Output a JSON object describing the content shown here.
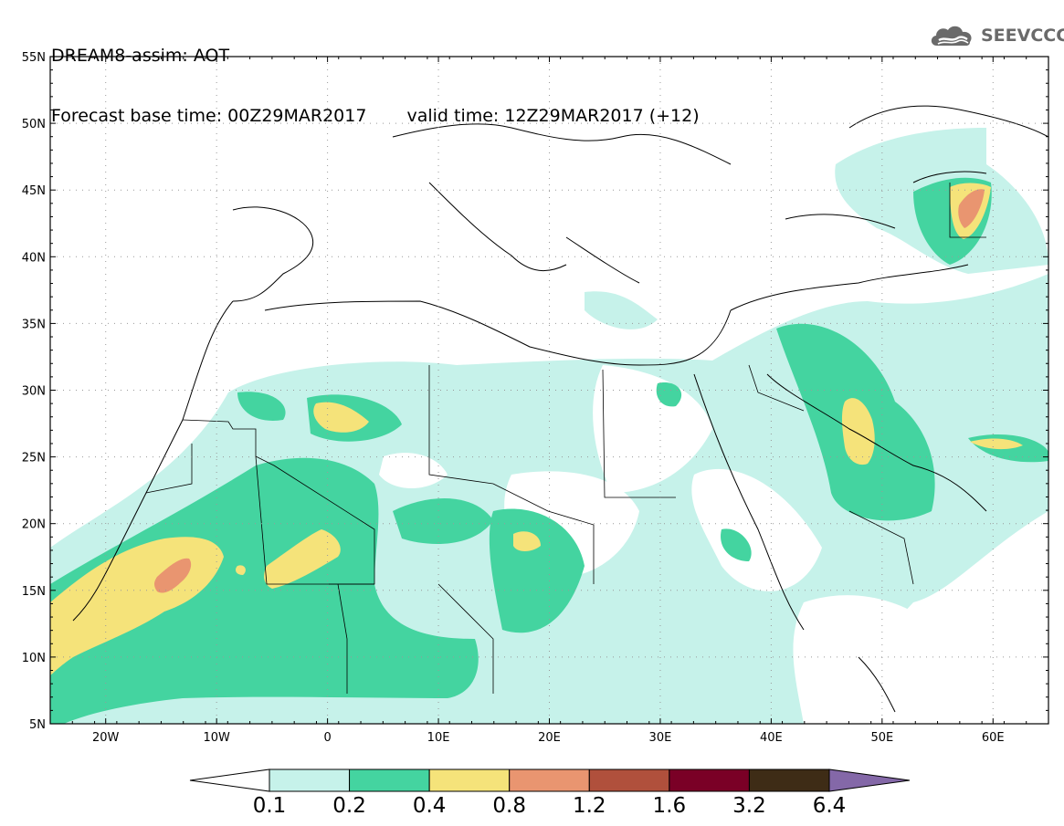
{
  "header": {
    "line1": "DREAM8-assim: AOT",
    "base_time": "Forecast base time: 00Z29MAR2017",
    "valid_time": "valid time: 12Z29MAR2017 (+12)"
  },
  "logo": {
    "text": "SEEVCCC",
    "icon": "cloud-icon"
  },
  "axes": {
    "lat_labels": [
      "55N",
      "50N",
      "45N",
      "40N",
      "35N",
      "30N",
      "25N",
      "20N",
      "15N",
      "10N",
      "5N"
    ],
    "lon_labels": [
      "20W",
      "10W",
      "0",
      "10E",
      "20E",
      "30E",
      "40E",
      "50E",
      "60E"
    ],
    "lat_range": [
      5,
      55
    ],
    "lon_range": [
      -25,
      65
    ]
  },
  "colorbar": {
    "ticks": [
      "0.1",
      "0.2",
      "0.4",
      "0.8",
      "1.2",
      "1.6",
      "3.2",
      "6.4"
    ],
    "colors": [
      "#c6f2ea",
      "#44d4a0",
      "#f5e37a",
      "#e99570",
      "#b0503c",
      "#7a0026",
      "#3e2c16",
      "#8468a8"
    ]
  },
  "legend_colors": {
    "low": "#c6f2ea",
    "mid": "#44d4a0",
    "high": "#f5e37a",
    "very_high": "#e99570",
    "extreme": "#b0503c"
  }
}
